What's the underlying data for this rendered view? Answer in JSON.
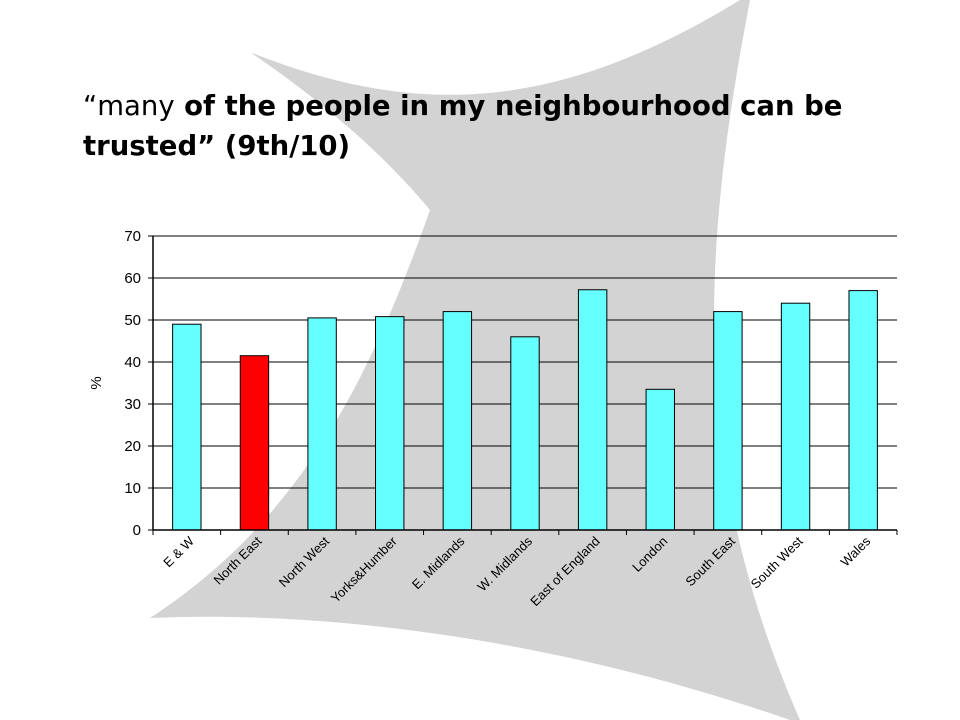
{
  "title": {
    "lead": "“many",
    "rest": " of the people in my neighbourhood can be trusted” (9th/10)"
  },
  "colors": {
    "background_shape": "#d3d3d3",
    "bar_default": "#66ffff",
    "bar_highlight": "#ff0000",
    "bar_outline": "#000000",
    "gridline": "#000000"
  },
  "chart_data": {
    "type": "bar",
    "categories": [
      "E & W",
      "North East",
      "North West",
      "Yorks&Humber",
      "E. Midlands",
      "W. Midlands",
      "East of England",
      "London",
      "South East",
      "South West",
      "Wales"
    ],
    "values": [
      49,
      41.5,
      50.5,
      50.8,
      52,
      46,
      57.2,
      33.5,
      52,
      54,
      57
    ],
    "highlight_index": 1,
    "ylabel": "%",
    "xlabel": "",
    "ylim": [
      0,
      70
    ],
    "yticks": [
      0,
      10,
      20,
      30,
      40,
      50,
      60,
      70
    ],
    "grid": true,
    "legend": "none"
  }
}
